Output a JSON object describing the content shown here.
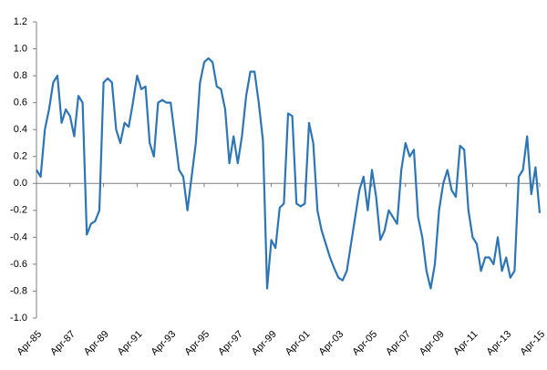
{
  "chart_data": {
    "type": "line",
    "x": [
      "Apr-85",
      "Jul-85",
      "Oct-85",
      "Jan-86",
      "Apr-86",
      "Jul-86",
      "Oct-86",
      "Jan-87",
      "Apr-87",
      "Jul-87",
      "Oct-87",
      "Jan-88",
      "Apr-88",
      "Jul-88",
      "Oct-88",
      "Jan-89",
      "Apr-89",
      "Jul-89",
      "Oct-89",
      "Jan-90",
      "Apr-90",
      "Jul-90",
      "Oct-90",
      "Jan-91",
      "Apr-91",
      "Jul-91",
      "Oct-91",
      "Jan-92",
      "Apr-92",
      "Jul-92",
      "Oct-92",
      "Jan-93",
      "Apr-93",
      "Jul-93",
      "Oct-93",
      "Jan-94",
      "Apr-94",
      "Jul-94",
      "Oct-94",
      "Jan-95",
      "Apr-95",
      "Jul-95",
      "Oct-95",
      "Jan-96",
      "Apr-96",
      "Jul-96",
      "Oct-96",
      "Jan-97",
      "Apr-97",
      "Jul-97",
      "Oct-97",
      "Jan-98",
      "Apr-98",
      "Jul-98",
      "Oct-98",
      "Jan-99",
      "Apr-99",
      "Jul-99",
      "Oct-99",
      "Jan-00",
      "Apr-00",
      "Jul-00",
      "Oct-00",
      "Jan-01",
      "Apr-01",
      "Jul-01",
      "Oct-01",
      "Jan-02",
      "Apr-02",
      "Jul-02",
      "Oct-02",
      "Jan-03",
      "Apr-03",
      "Jul-03",
      "Oct-03",
      "Jan-04",
      "Apr-04",
      "Jul-04",
      "Oct-04",
      "Jan-05",
      "Apr-05",
      "Jul-05",
      "Oct-05",
      "Jan-06",
      "Apr-06",
      "Jul-06",
      "Oct-06",
      "Jan-07",
      "Apr-07",
      "Jul-07",
      "Oct-07",
      "Jan-08",
      "Apr-08",
      "Jul-08",
      "Oct-08",
      "Jan-09",
      "Apr-09",
      "Jul-09",
      "Oct-09",
      "Jan-10",
      "Apr-10",
      "Jul-10",
      "Oct-10",
      "Jan-11",
      "Apr-11",
      "Jul-11",
      "Oct-11",
      "Jan-12",
      "Apr-12",
      "Jul-12",
      "Oct-12",
      "Jan-13",
      "Apr-13",
      "Jul-13",
      "Oct-13",
      "Jan-14",
      "Apr-14",
      "Jul-14",
      "Oct-14",
      "Jan-15",
      "Apr-15"
    ],
    "series": [
      {
        "color": "#2e75b6",
        "values": [
          0.1,
          0.05,
          0.4,
          0.55,
          0.75,
          0.8,
          0.45,
          0.55,
          0.5,
          0.35,
          0.65,
          0.6,
          -0.38,
          -0.3,
          -0.28,
          -0.2,
          0.75,
          0.78,
          0.75,
          0.4,
          0.3,
          0.45,
          0.42,
          0.6,
          0.8,
          0.7,
          0.72,
          0.3,
          0.2,
          0.6,
          0.62,
          0.6,
          0.6,
          0.35,
          0.1,
          0.05,
          -0.2,
          0.05,
          0.3,
          0.75,
          0.9,
          0.93,
          0.9,
          0.72,
          0.7,
          0.55,
          0.15,
          0.35,
          0.15,
          0.35,
          0.65,
          0.83,
          0.83,
          0.6,
          0.32,
          -0.78,
          -0.42,
          -0.48,
          -0.18,
          -0.15,
          0.52,
          0.5,
          -0.15,
          -0.17,
          -0.15,
          0.45,
          0.3,
          -0.2,
          -0.35,
          -0.45,
          -0.55,
          -0.63,
          -0.7,
          -0.72,
          -0.65,
          -0.45,
          -0.25,
          -0.05,
          0.05,
          -0.2,
          0.1,
          -0.1,
          -0.42,
          -0.35,
          -0.2,
          -0.25,
          -0.3,
          0.1,
          0.3,
          0.2,
          0.25,
          -0.25,
          -0.4,
          -0.65,
          -0.78,
          -0.6,
          -0.2,
          0.0,
          0.1,
          -0.05,
          -0.1,
          0.28,
          0.25,
          -0.2,
          -0.4,
          -0.45,
          -0.65,
          -0.55,
          -0.55,
          -0.6,
          -0.4,
          -0.65,
          -0.55,
          -0.7,
          -0.65,
          0.05,
          0.1,
          0.35,
          -0.08,
          0.12,
          -0.22
        ]
      }
    ],
    "xticks": [
      "Apr-85",
      "Apr-87",
      "Apr-89",
      "Apr-91",
      "Apr-93",
      "Apr-95",
      "Apr-97",
      "Apr-99",
      "Apr-01",
      "Apr-03",
      "Apr-05",
      "Apr-07",
      "Apr-09",
      "Apr-11",
      "Apr-13",
      "Apr-15"
    ],
    "ylim": [
      -1.0,
      1.2
    ],
    "yticks": [
      {
        "value": -1.0,
        "label": "-1.0"
      },
      -0.8,
      -0.6,
      -0.4,
      -0.2,
      {
        "value": 0.0,
        "label": "0.0"
      },
      0.2,
      0.4,
      0.6,
      0.8,
      {
        "value": 1.0,
        "label": "1.0"
      },
      1.2
    ]
  }
}
